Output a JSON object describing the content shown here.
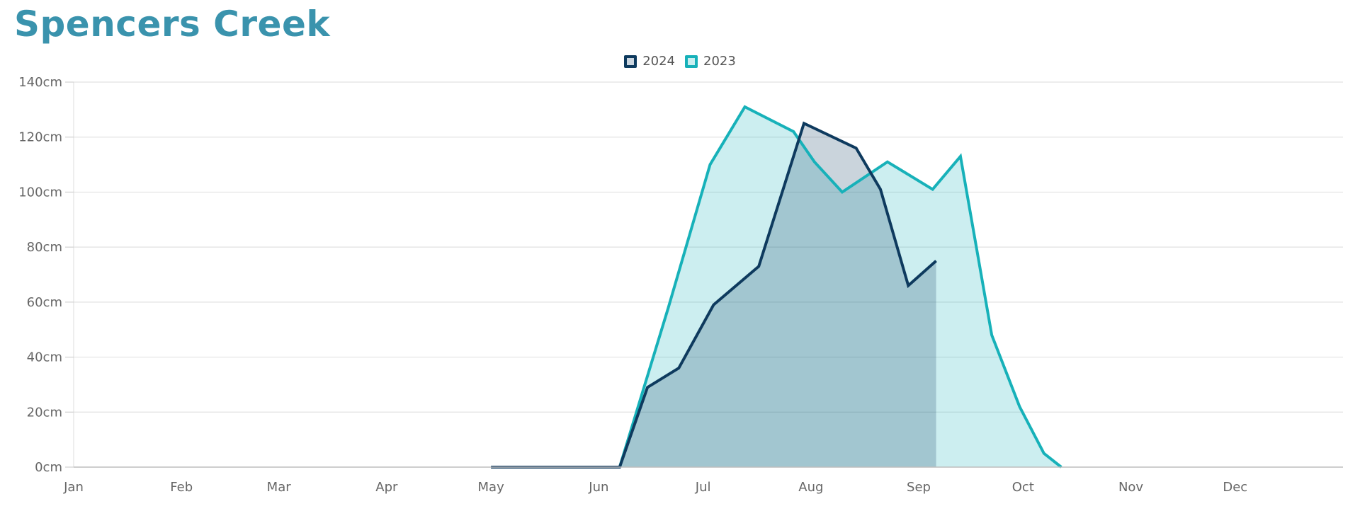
{
  "chart_data": {
    "type": "area",
    "title": "Spencers Creek",
    "xlabel": "",
    "ylabel": "",
    "unit": "cm",
    "ylim": [
      0,
      140
    ],
    "yticks": [
      0,
      20,
      40,
      60,
      80,
      100,
      120,
      140
    ],
    "ytick_labels": [
      "0cm",
      "20cm",
      "40cm",
      "60cm",
      "80cm",
      "100cm",
      "120cm",
      "140cm"
    ],
    "x_range": [
      "Jan 1",
      "Dec 31"
    ],
    "months": [
      "Jan",
      "Feb",
      "Mar",
      "Apr",
      "May",
      "Jun",
      "Jul",
      "Aug",
      "Sep",
      "Oct",
      "Nov",
      "Dec"
    ],
    "grid": true,
    "legend_position": "top-center",
    "series": [
      {
        "name": "2024",
        "color": "#0e3a5e",
        "fill": "#0e3a5e",
        "points": [
          [
            "May 1",
            0
          ],
          [
            "Jun 7",
            0
          ],
          [
            "Jun 15",
            29
          ],
          [
            "Jun 24",
            36
          ],
          [
            "Jul 4",
            59
          ],
          [
            "Jul 17",
            73
          ],
          [
            "Jul 30",
            125
          ],
          [
            "Aug 14",
            116
          ],
          [
            "Aug 21",
            101
          ],
          [
            "Aug 29",
            66
          ],
          [
            "Sep 6",
            75
          ]
        ]
      },
      {
        "name": "2023",
        "color": "#17b1b9",
        "fill": "#17b1b9",
        "points": [
          [
            "Jun 7",
            0
          ],
          [
            "Jun 21",
            58
          ],
          [
            "Jul 3",
            110
          ],
          [
            "Jul 13",
            131
          ],
          [
            "Jul 27",
            122
          ],
          [
            "Aug 2",
            111
          ],
          [
            "Aug 10",
            100
          ],
          [
            "Aug 23",
            111
          ],
          [
            "Sep 5",
            101
          ],
          [
            "Sep 13",
            113
          ],
          [
            "Sep 22",
            48
          ],
          [
            "Sep 30",
            22
          ],
          [
            "Oct 7",
            5
          ],
          [
            "Oct 12",
            0
          ]
        ]
      }
    ]
  }
}
